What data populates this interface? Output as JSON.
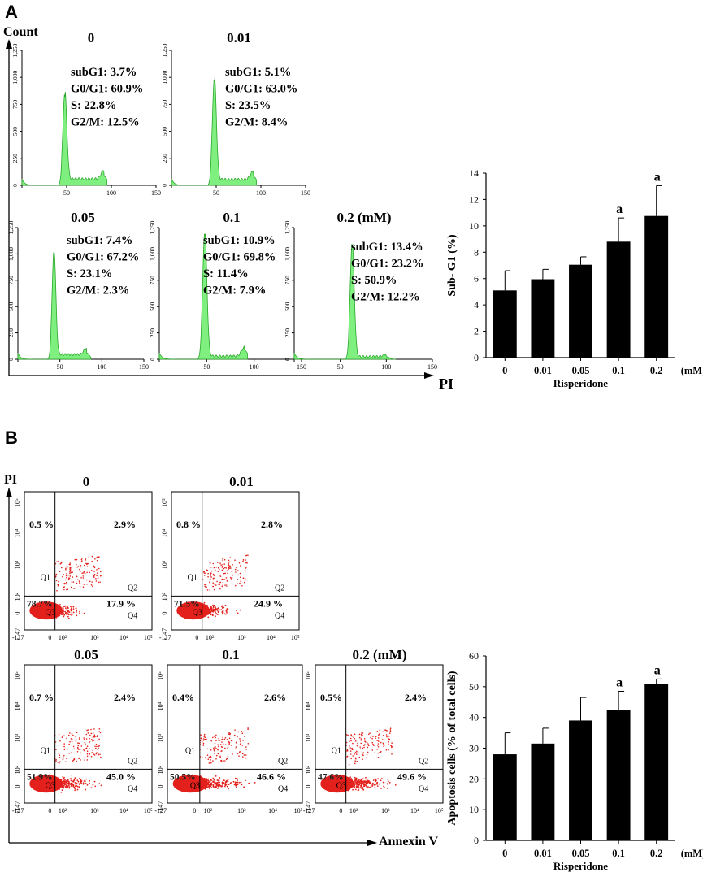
{
  "panel_a_label": "A",
  "panel_b_label": "B",
  "chart_data": [
    {
      "type": "histogram",
      "panel": "A",
      "ylabel": "Count",
      "xlabel": "PI",
      "yticks": [
        "0",
        "250",
        "500",
        "750",
        "1,000",
        "1,250"
      ],
      "xticks": [
        "0",
        "50",
        "100",
        "150"
      ],
      "histograms": [
        {
          "title": "0",
          "stats": [
            "subG1: 3.7%",
            "G0/G1: 60.9%",
            "S: 22.8%",
            "G2/M: 12.5%"
          ],
          "peak_x": 48,
          "peak_height": 820,
          "g2_x": 92,
          "g2_height": 85,
          "s_height": 60,
          "sub_height": 60,
          "xmax": 95
        },
        {
          "title": "0.01",
          "stats": [
            "subG1: 5.1%",
            "G0/G1: 63.0%",
            "S: 23.5%",
            "G2/M: 8.4%"
          ],
          "peak_x": 48,
          "peak_height": 960,
          "g2_x": 92,
          "g2_height": 80,
          "s_height": 55,
          "sub_height": 60,
          "xmax": 95
        },
        {
          "title": "0.05",
          "stats": [
            "subG1: 7.4%",
            "G0/G1: 67.2%",
            "S: 23.1%",
            "G2/M: 2.3%"
          ],
          "peak_x": 43,
          "peak_height": 1000,
          "g2_x": 82,
          "g2_height": 60,
          "s_height": 45,
          "sub_height": 60,
          "xmax": 87
        },
        {
          "title": "0.1",
          "stats": [
            "subG1: 10.9%",
            "G0/G1: 69.8%",
            "S: 11.4%",
            "G2/M: 7.9%"
          ],
          "peak_x": 48,
          "peak_height": 1180,
          "g2_x": 90,
          "g2_height": 85,
          "s_height": 30,
          "sub_height": 60,
          "xmax": 93
        },
        {
          "title": "0.2 (mM)",
          "stats": [
            "subG1: 13.4%",
            "G0/G1: 23.2%",
            "S: 50.9%",
            "G2/M: 12.2%"
          ],
          "peak_x": 63,
          "peak_height": 1080,
          "g2_x": 100,
          "g2_height": 25,
          "s_height": 25,
          "sub_height": 60,
          "xmax": 110
        }
      ]
    },
    {
      "type": "bar",
      "panel": "A",
      "categories": [
        "0",
        "0.01",
        "0.05",
        "0.1",
        "0.2"
      ],
      "values": [
        5.1,
        5.95,
        7.05,
        8.8,
        10.75
      ],
      "errors": [
        1.5,
        0.75,
        0.6,
        1.8,
        2.3
      ],
      "annotations": [
        "",
        "",
        "",
        "a",
        "a"
      ],
      "ylabel": "Sub- G1 (%)",
      "xlabel": "Risperidone",
      "unit": "(mM)",
      "ylim": [
        0,
        14
      ],
      "yticks": [
        "0",
        "2",
        "4",
        "6",
        "8",
        "10",
        "12",
        "14"
      ]
    },
    {
      "type": "scatter",
      "panel": "B",
      "ylabel": "PI",
      "xlabel": "Annexin V",
      "xticks": [
        "-127",
        "0",
        "10²",
        "10³",
        "10⁴",
        "10⁵"
      ],
      "yticks": [
        "-147",
        "0",
        "10²",
        "10³",
        "10⁴",
        "10⁵"
      ],
      "plots": [
        {
          "title": "0",
          "q1": "0.5 %",
          "q2": "2.9%",
          "q3": "78.7%",
          "q4": "17.9 %",
          "spread": 0.45
        },
        {
          "title": "0.01",
          "q1": "0.8 %",
          "q2": "2.8%",
          "q3": "71.5%",
          "q4": "24.9 %",
          "spread": 0.5
        },
        {
          "title": "0.05",
          "q1": "0.7 %",
          "q2": "2.4%",
          "q3": "51.9%",
          "q4": "45.0 %",
          "spread": 0.6
        },
        {
          "title": "0.1",
          "q1": "0.4%",
          "q2": "2.6%",
          "q3": "50.5%",
          "q4": "46.6 %",
          "spread": 0.62
        },
        {
          "title": "0.2 (mM)",
          "q1": "0.5%",
          "q2": "2.4%",
          "q3": "47.6%",
          "q4": "49.6 %",
          "spread": 0.66
        }
      ],
      "quadrant_names": [
        "Q1",
        "Q2",
        "Q3",
        "Q4"
      ]
    },
    {
      "type": "bar",
      "panel": "B",
      "categories": [
        "0",
        "0.01",
        "0.05",
        "0.1",
        "0.2"
      ],
      "values": [
        28,
        31.5,
        39,
        42.5,
        51
      ],
      "errors": [
        7,
        5,
        7.5,
        6,
        1.5
      ],
      "annotations": [
        "",
        "",
        "",
        "a",
        "a"
      ],
      "ylabel": "Apoptosis cells (% of total cells)",
      "xlabel": "Risperidone",
      "unit": "(mM)",
      "ylim": [
        0,
        60
      ],
      "yticks": [
        "0",
        "10",
        "20",
        "30",
        "40",
        "50",
        "60"
      ]
    }
  ]
}
